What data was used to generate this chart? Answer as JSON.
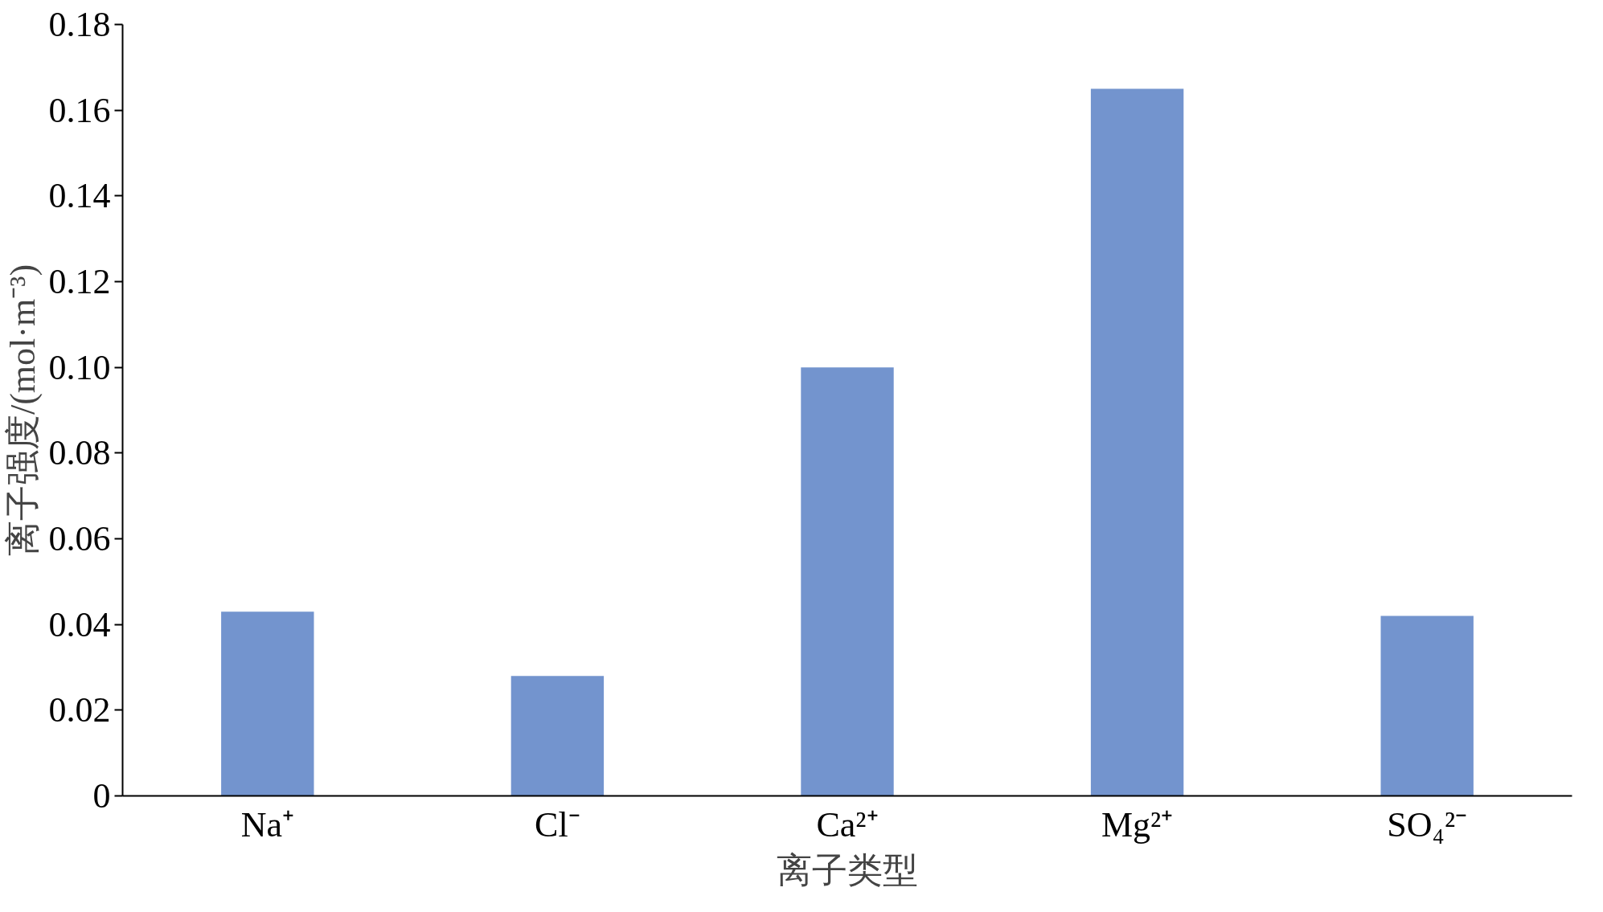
{
  "chart_data": {
    "type": "bar",
    "xlabel": "离子类型",
    "ylabel": "离子强度/(mol·m⁻³)",
    "categories": [
      "Na⁺",
      "Cl⁻",
      "Ca²⁺",
      "Mg²⁺",
      "SO₄²⁻"
    ],
    "values": [
      0.043,
      0.028,
      0.1,
      0.165,
      0.042
    ],
    "color": "#7394ce",
    "ylim": [
      0,
      0.18
    ],
    "yticks": [
      0,
      0.02,
      0.04,
      0.06,
      0.08,
      {
        "value": 0.1,
        "label": "0.10"
      },
      0.12,
      0.14,
      0.16,
      0.18
    ],
    "grid": false
  }
}
